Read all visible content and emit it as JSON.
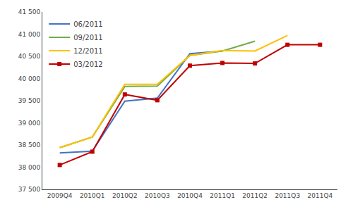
{
  "chart_data": {
    "type": "line",
    "categories": [
      "2009Q4",
      "2010Q1",
      "2010Q2",
      "2010Q3",
      "2010Q4",
      "2011Q1",
      "2011Q2",
      "2011Q3",
      "2011Q4"
    ],
    "series": [
      {
        "name": "06/2011",
        "color": "#4472c4",
        "values": [
          38320,
          38360,
          39490,
          39560,
          40560,
          40620,
          null,
          null,
          null
        ]
      },
      {
        "name": "09/2011",
        "color": "#70ad47",
        "values": [
          38440,
          38680,
          39820,
          39830,
          40520,
          40620,
          40840,
          null,
          null
        ]
      },
      {
        "name": "12/2011",
        "color": "#ffc000",
        "values": [
          38440,
          38680,
          39870,
          39870,
          40520,
          40630,
          40620,
          40970,
          null
        ]
      },
      {
        "name": "03/2012",
        "color": "#c00000",
        "marker": "square",
        "values": [
          38050,
          38350,
          39640,
          39510,
          40290,
          40350,
          40340,
          40760,
          40760
        ]
      }
    ],
    "ylim": [
      37500,
      41500
    ],
    "yticks": [
      {
        "value": 37500,
        "label": "37 500"
      },
      {
        "value": 38000,
        "label": "38 000"
      },
      {
        "value": 38500,
        "label": "38 500"
      },
      {
        "value": 39000,
        "label": "39 000"
      },
      {
        "value": 39500,
        "label": "39 500"
      },
      {
        "value": 40000,
        "label": "40 000"
      },
      {
        "value": 40500,
        "label": "40 500"
      },
      {
        "value": 41000,
        "label": "41 000"
      },
      {
        "value": 41500,
        "label": "41 500"
      }
    ],
    "grid": false,
    "legend": "upper left"
  }
}
